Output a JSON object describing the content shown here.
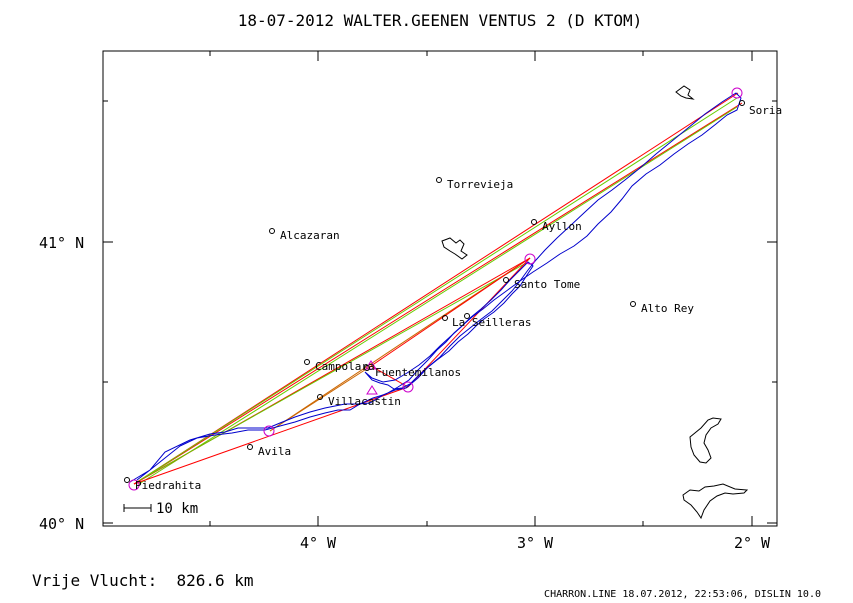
{
  "header": {
    "title": "18-07-2012    WALTER.GEENEN    VENTUS 2 (D KTOM)"
  },
  "axes": {
    "lat_labels": [
      "41° N",
      "40° N"
    ],
    "lon_labels": [
      "4° W",
      "3° W",
      "2° W"
    ]
  },
  "scale_bar": {
    "label": "10 km"
  },
  "footer": {
    "distance_text": "Vrije Vlucht:  826.6 km",
    "credit": "CHARRON.LINE 18.07.2012, 22:53:06, DISLIN 10.0"
  },
  "towns": [
    {
      "name": "Soria"
    },
    {
      "name": "Torrevieja"
    },
    {
      "name": "Alcazaran"
    },
    {
      "name": "Ayllon"
    },
    {
      "name": "Santo Tome"
    },
    {
      "name": "Alto Rey"
    },
    {
      "name": "La Seilleras"
    },
    {
      "name": "Campolara"
    },
    {
      "name": "Fuentemilanos"
    },
    {
      "name": "Villacastin"
    },
    {
      "name": "Avila"
    },
    {
      "name": "Piedrahita"
    }
  ],
  "colors": {
    "frame": "#000000",
    "track": "#0000cc",
    "leg_red": "#ff0000",
    "leg_green": "#66cc00",
    "leg_orange": "#cc6600",
    "turnpoint": "#cc00cc"
  }
}
